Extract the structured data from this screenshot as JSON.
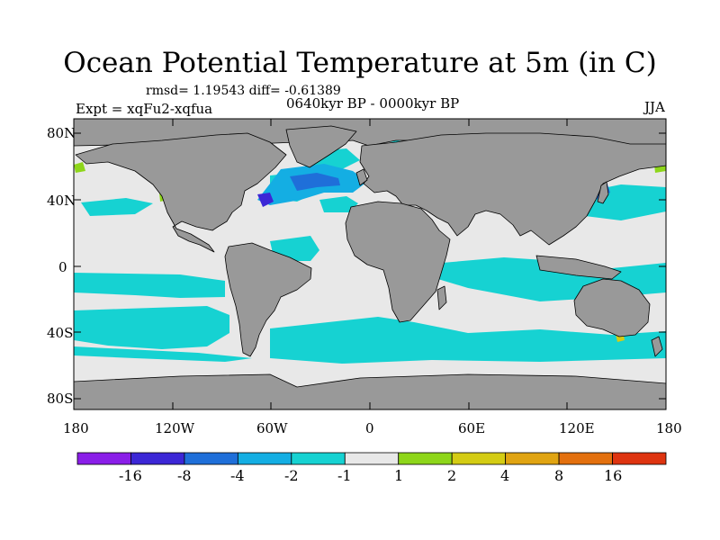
{
  "title": "Ocean Potential Temperature at 5m (in C)",
  "stats": "rmsd= 1.19543 diff= -0.61389",
  "experiment": "Expt = xqFu2-xqfua",
  "period": "0640kyr BP - 0000kyr BP",
  "season": "JJA",
  "axes": {
    "lat_labels": [
      "80N",
      "40N",
      "0",
      "40S",
      "80S"
    ],
    "lon_labels": [
      "180",
      "120W",
      "60W",
      "0",
      "60E",
      "120E",
      "180"
    ]
  },
  "colorbar": {
    "levels": [
      "-16",
      "-8",
      "-4",
      "-2",
      "-1",
      "1",
      "2",
      "4",
      "8",
      "16"
    ],
    "colors": [
      "#8a1ee8",
      "#3c27d6",
      "#1f6fd9",
      "#14aee3",
      "#16d2d2",
      "#e8e8e8",
      "#8ed61a",
      "#d4cc14",
      "#e0a412",
      "#e3700e",
      "#de3410"
    ]
  },
  "map_colors": {
    "land": "#999999",
    "ocean_neutral": "#e8e8e8"
  }
}
